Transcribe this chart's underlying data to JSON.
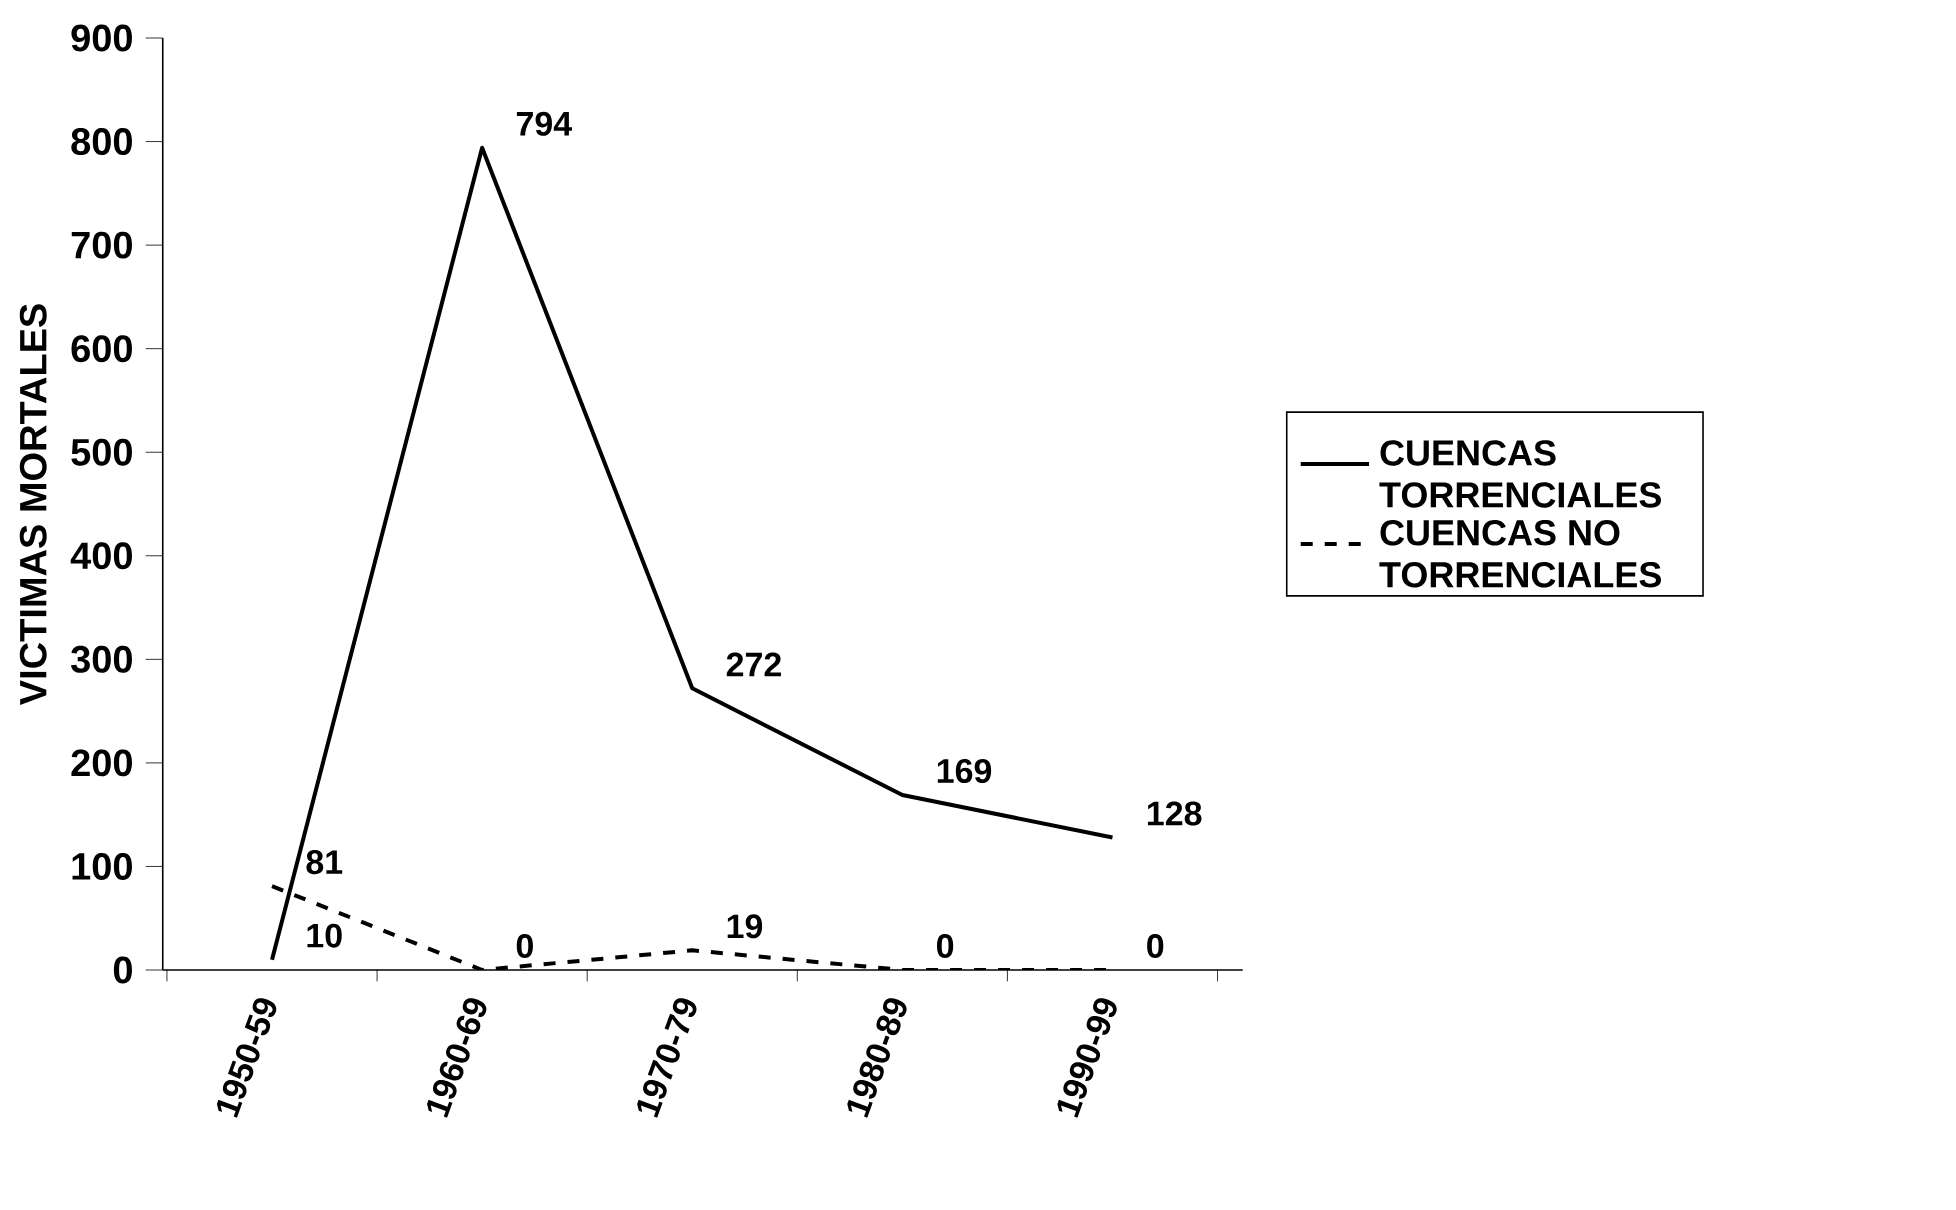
{
  "chart_data": {
    "type": "line",
    "ylabel": "VICTIMAS MORTALES",
    "categories": [
      "1950-59",
      "1960-69",
      "1970-79",
      "1980-89",
      "1990-99"
    ],
    "series": [
      {
        "name": "CUENCAS TORRENCIALES",
        "color": "#000000",
        "line_style": "solid",
        "values": [
          10,
          794,
          272,
          169,
          128
        ]
      },
      {
        "name": "CUENCAS NO TORRENCIALES",
        "color": "#000000",
        "line_style": "dashed",
        "values": [
          81,
          0,
          19,
          0,
          0
        ]
      }
    ],
    "ylim": [
      0,
      900
    ],
    "yticks": [
      0,
      100,
      200,
      300,
      400,
      500,
      600,
      700,
      800,
      900
    ],
    "grid": false,
    "legend": "right",
    "marker": "none",
    "data_labels": true
  }
}
